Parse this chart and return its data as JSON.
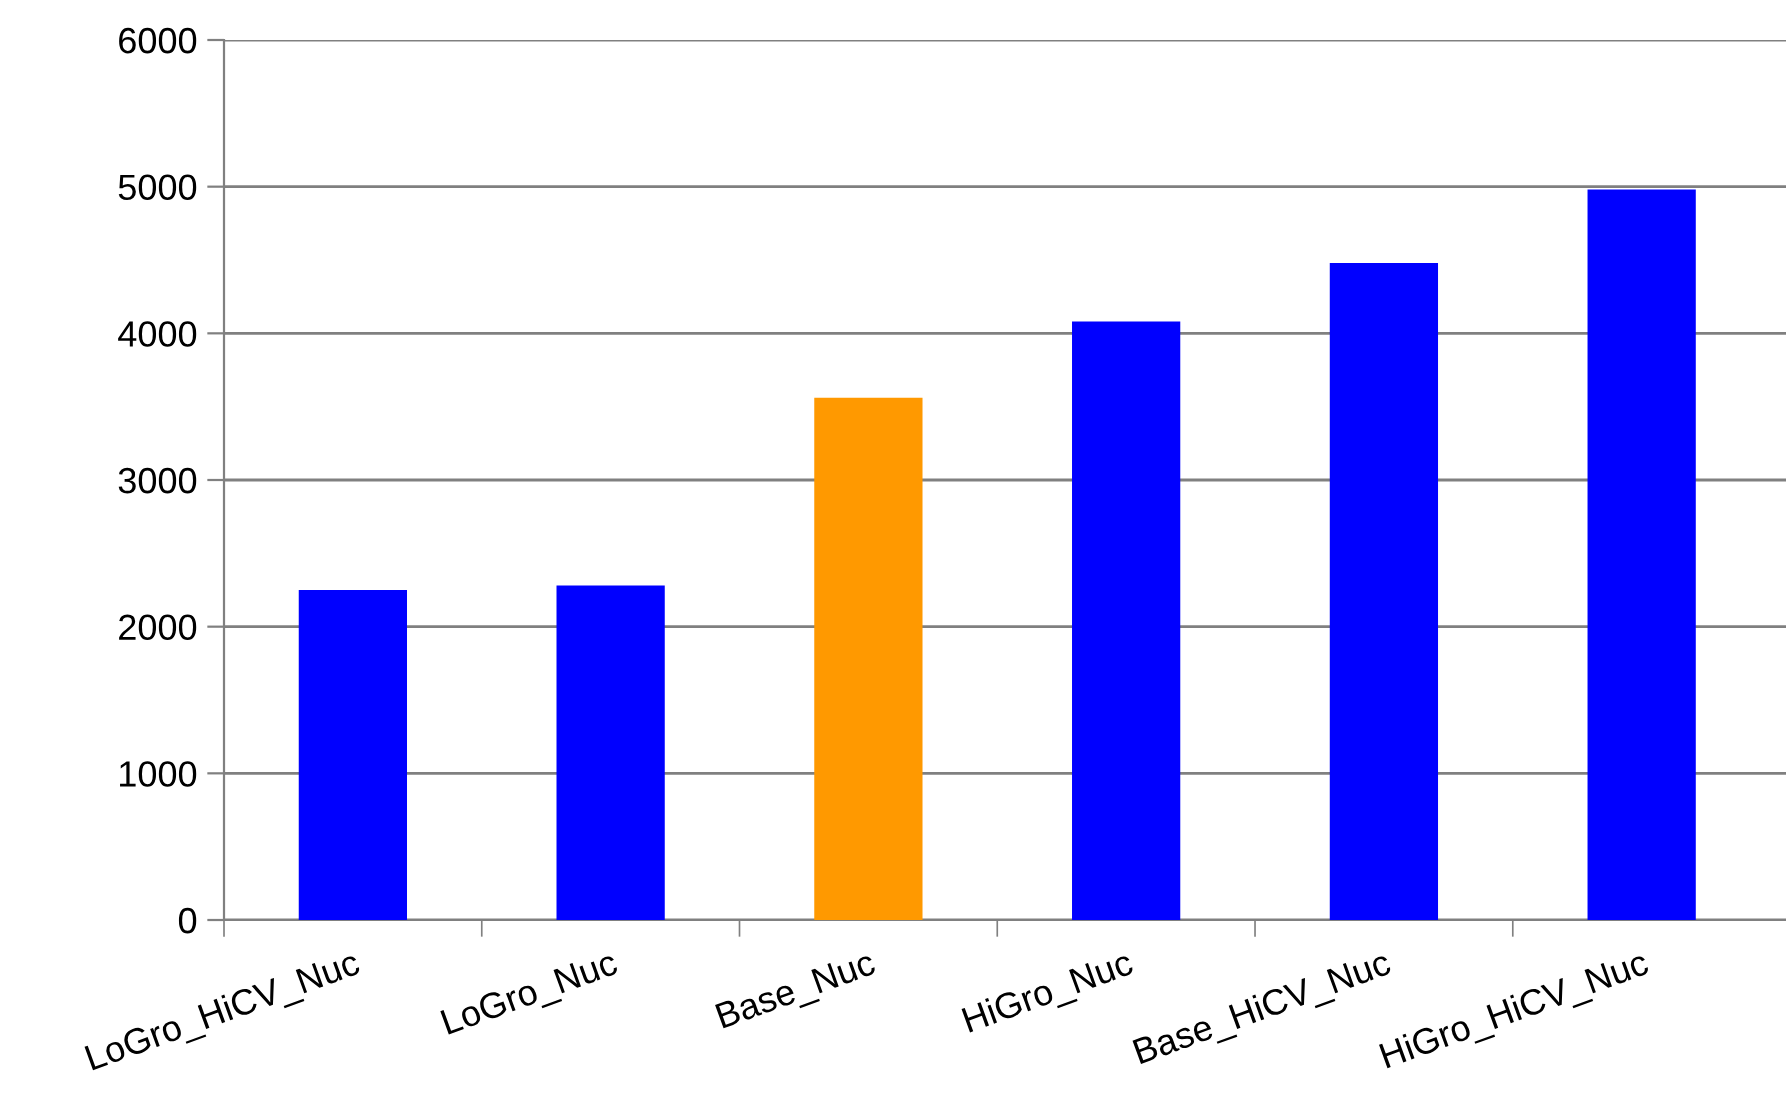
{
  "chart_data": {
    "type": "bar",
    "categories": [
      "LoGro_HiCV_Nuc",
      "LoGro_Nuc",
      "Base_Nuc",
      "HiGro_Nuc",
      "Base_HiCV_Nuc",
      "HiGro_HiCV_Nuc"
    ],
    "values": [
      2250,
      2280,
      3560,
      4080,
      4480,
      4980
    ],
    "colors": [
      "#0000ff",
      "#0000ff",
      "#ff9900",
      "#0000ff",
      "#0000ff",
      "#0000ff"
    ],
    "ylim": [
      0,
      6000
    ],
    "yticks": [
      0,
      1000,
      2000,
      3000,
      4000,
      5000,
      6000
    ],
    "grid": "y"
  }
}
